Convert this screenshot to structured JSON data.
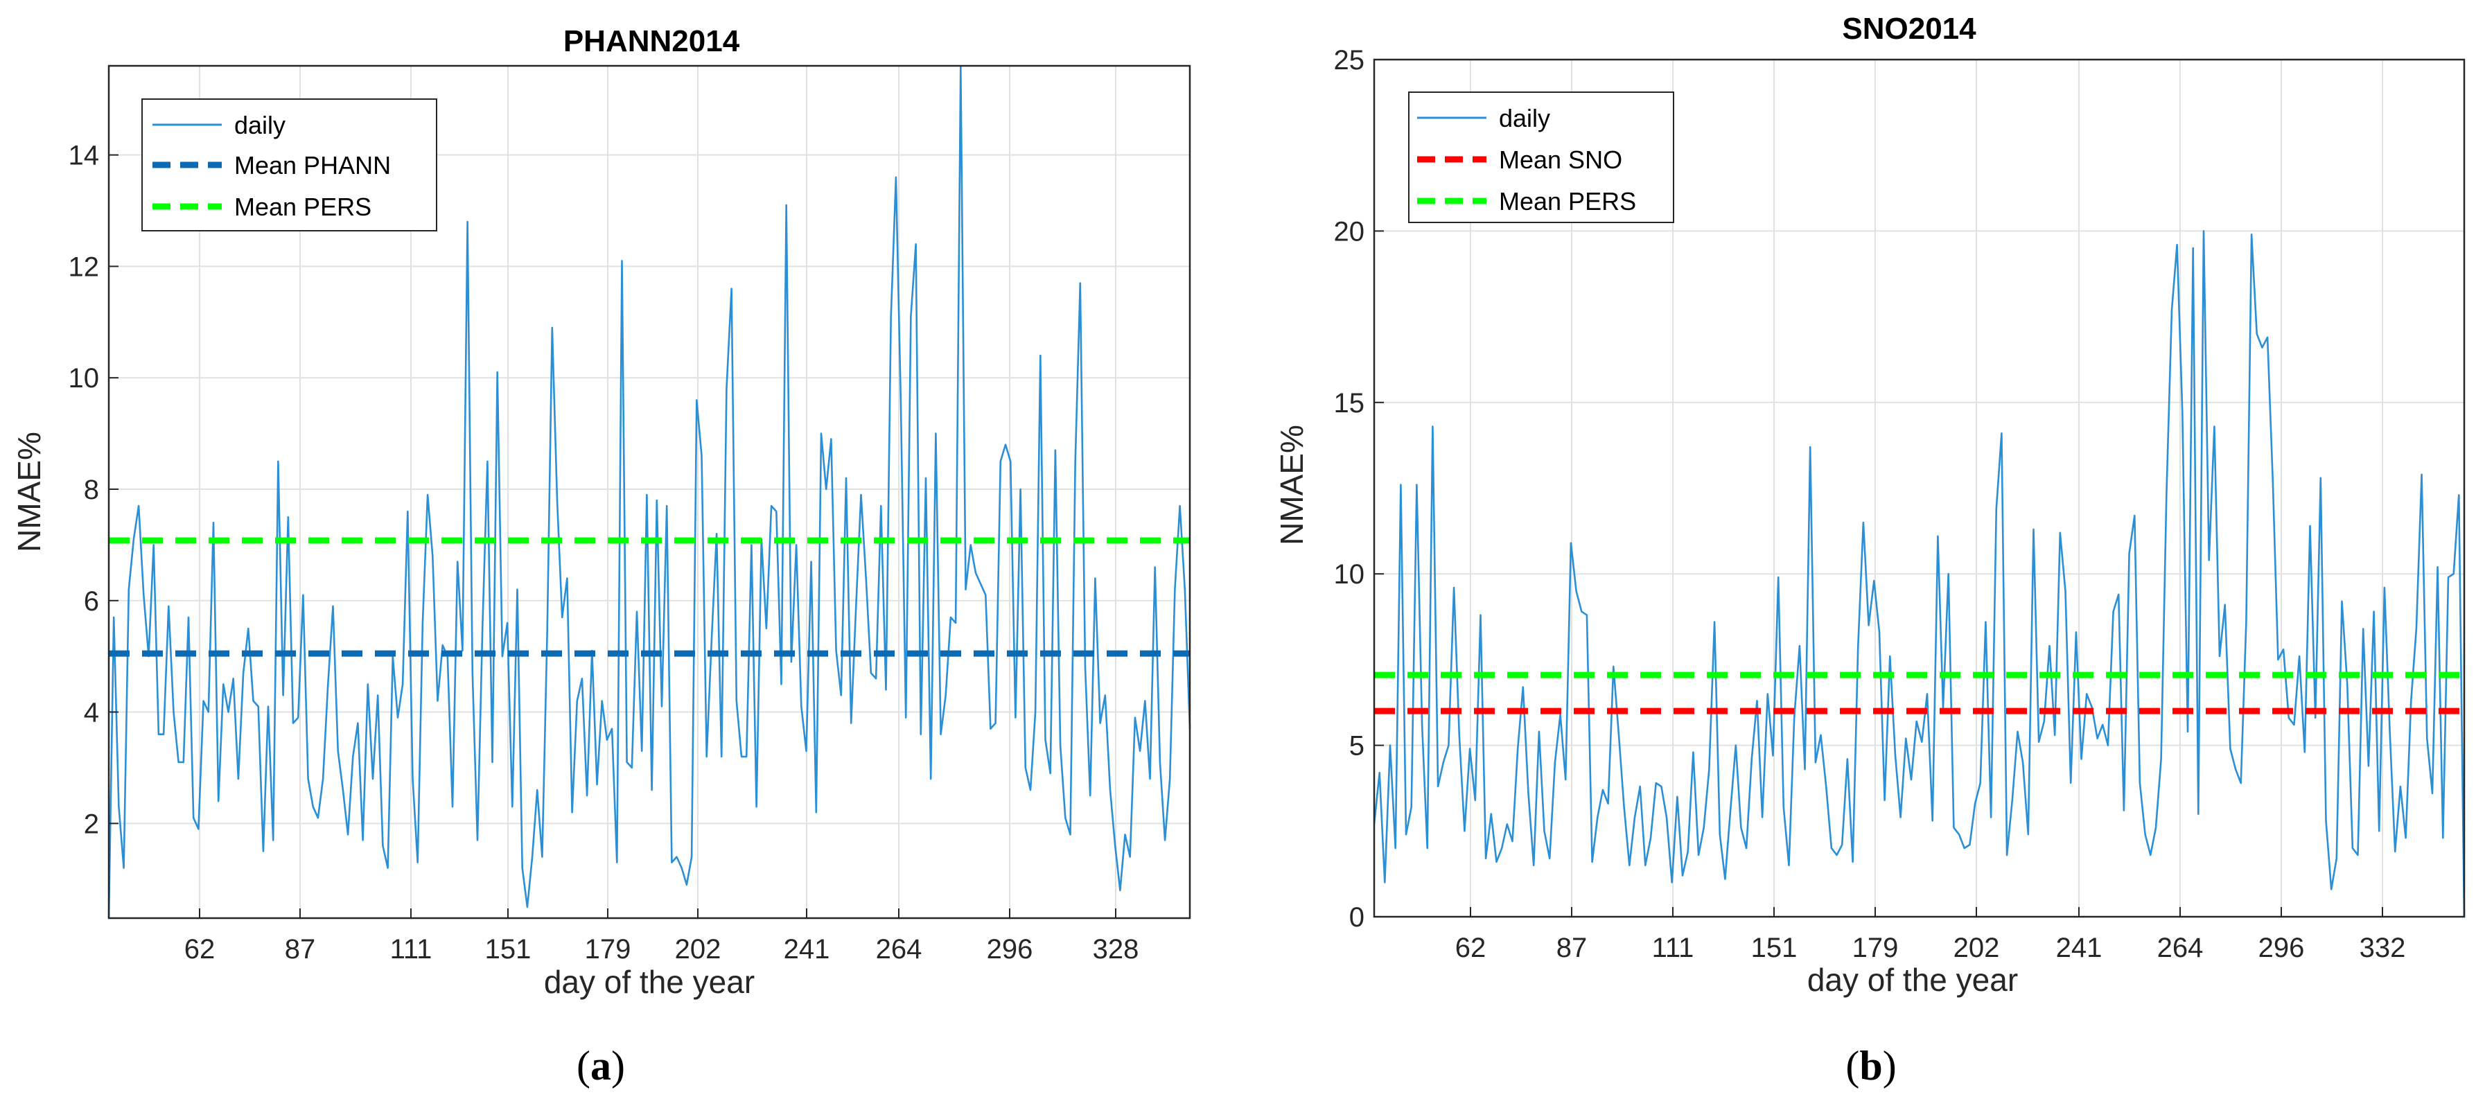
{
  "chart_data": [
    {
      "type": "line",
      "panel_label": "a",
      "title": "PHANN2014",
      "xlabel": "day of the year",
      "ylabel": "NMAE%",
      "ylim": [
        0.3,
        15.6
      ],
      "yticks": [
        2,
        4,
        6,
        8,
        10,
        12,
        14
      ],
      "xtick_labels": [
        "62",
        "87",
        "111",
        "151",
        "179",
        "202",
        "241",
        "264",
        "296",
        "328"
      ],
      "grid": true,
      "legend_position": "top-left",
      "series": [
        {
          "name": "daily",
          "style": "solid",
          "color": "#2b8fd6",
          "values": [
            0.3,
            5.7,
            2.3,
            1.2,
            6.2,
            7.1,
            7.7,
            6.1,
            5.0,
            7.0,
            3.6,
            3.6,
            5.9,
            4.0,
            3.1,
            3.1,
            5.7,
            2.1,
            1.9,
            4.2,
            4.0,
            7.4,
            2.4,
            4.5,
            4.0,
            4.6,
            2.8,
            4.7,
            5.5,
            4.2,
            4.1,
            1.5,
            4.1,
            1.7,
            8.5,
            4.3,
            7.5,
            3.8,
            3.9,
            6.1,
            2.8,
            2.3,
            2.1,
            2.8,
            4.5,
            5.9,
            3.3,
            2.6,
            1.8,
            3.2,
            3.8,
            1.7,
            4.5,
            2.8,
            4.3,
            1.6,
            1.2,
            5.0,
            3.9,
            4.5,
            7.6,
            2.8,
            1.3,
            5.6,
            7.9,
            6.8,
            4.2,
            5.2,
            5.0,
            2.3,
            6.7,
            5.1,
            12.8,
            4.7,
            1.7,
            5.5,
            8.5,
            3.1,
            10.1,
            5.0,
            5.6,
            2.3,
            6.2,
            1.2,
            0.5,
            1.4,
            2.6,
            1.4,
            5.4,
            10.9,
            7.8,
            5.7,
            6.4,
            2.2,
            4.2,
            4.6,
            2.5,
            5.1,
            2.7,
            4.2,
            3.5,
            3.7,
            1.3,
            12.1,
            3.1,
            3.0,
            5.8,
            3.3,
            7.9,
            2.6,
            7.8,
            4.1,
            7.7,
            1.3,
            1.4,
            1.2,
            0.9,
            1.4,
            9.6,
            8.6,
            3.2,
            5.3,
            7.2,
            3.2,
            9.8,
            11.6,
            4.2,
            3.2,
            3.2,
            7.0,
            2.3,
            7.1,
            5.5,
            7.7,
            7.6,
            4.5,
            13.1,
            4.9,
            7.0,
            4.1,
            3.3,
            6.7,
            2.2,
            9.0,
            8.0,
            8.9,
            5.1,
            4.3,
            8.2,
            3.8,
            5.9,
            7.9,
            6.4,
            4.7,
            4.6,
            7.7,
            4.4,
            11.1,
            13.6,
            9.5,
            3.9,
            11.1,
            12.4,
            3.6,
            8.2,
            2.8,
            9.0,
            3.6,
            4.3,
            5.7,
            5.6,
            15.6,
            6.2,
            7.0,
            6.5,
            6.3,
            6.1,
            3.7,
            3.8,
            8.5,
            8.8,
            8.5,
            3.9,
            8.0,
            3.0,
            2.6,
            4.0,
            10.4,
            3.5,
            2.9,
            8.7,
            3.4,
            2.1,
            1.8,
            8.5,
            11.7,
            4.8,
            2.5,
            6.4,
            3.8,
            4.3,
            2.6,
            1.6,
            0.8,
            1.8,
            1.4,
            3.9,
            3.3,
            4.2,
            2.8,
            6.6,
            3.1,
            1.7,
            2.8,
            6.2,
            7.7,
            6.2,
            3.7
          ]
        },
        {
          "name": "Mean PHANN",
          "style": "dashed",
          "color": "#0a6ab4",
          "value": 5.05
        },
        {
          "name": "Mean PERS",
          "style": "dashed",
          "color": "#00ff00",
          "value": 7.08
        }
      ]
    },
    {
      "type": "line",
      "panel_label": "b",
      "title": "SNO2014",
      "xlabel": "day of the year",
      "ylabel": "NMAE%",
      "ylim": [
        0,
        25
      ],
      "yticks": [
        0,
        5,
        10,
        15,
        20,
        25
      ],
      "xtick_labels": [
        "62",
        "87",
        "111",
        "151",
        "179",
        "202",
        "241",
        "264",
        "296",
        "332"
      ],
      "grid": true,
      "legend_position": "top-left",
      "series": [
        {
          "name": "daily",
          "style": "solid",
          "color": "#2b8fd6",
          "values": [
            2.7,
            4.2,
            1.0,
            5.0,
            2.0,
            12.6,
            2.4,
            3.2,
            12.6,
            5.6,
            2.0,
            14.3,
            3.8,
            4.5,
            5.0,
            9.6,
            5.3,
            2.5,
            4.9,
            3.4,
            8.8,
            1.7,
            3.0,
            1.6,
            2.0,
            2.7,
            2.2,
            4.9,
            6.7,
            3.6,
            1.5,
            5.4,
            2.5,
            1.7,
            4.5,
            5.9,
            4.0,
            10.9,
            9.5,
            8.9,
            8.8,
            1.6,
            2.9,
            3.7,
            3.3,
            7.3,
            5.3,
            3.2,
            1.5,
            2.9,
            3.8,
            1.5,
            2.3,
            3.9,
            3.8,
            2.9,
            1.0,
            3.5,
            1.2,
            1.9,
            4.8,
            1.8,
            2.6,
            4.3,
            8.6,
            2.4,
            1.1,
            3.1,
            5.0,
            2.6,
            2.0,
            4.6,
            6.3,
            2.9,
            6.5,
            4.7,
            9.9,
            3.2,
            1.5,
            5.8,
            7.9,
            4.3,
            13.7,
            4.5,
            5.3,
            3.8,
            2.0,
            1.8,
            2.1,
            4.6,
            1.6,
            7.9,
            11.5,
            8.5,
            9.8,
            8.3,
            3.4,
            7.6,
            4.7,
            2.9,
            5.2,
            4.0,
            5.7,
            5.1,
            6.5,
            2.8,
            11.1,
            6.1,
            10.0,
            2.6,
            2.4,
            2.0,
            2.1,
            3.3,
            3.9,
            8.6,
            2.9,
            11.9,
            14.1,
            1.8,
            3.4,
            5.4,
            4.5,
            2.4,
            11.3,
            5.1,
            5.7,
            7.9,
            5.3,
            11.2,
            9.5,
            3.9,
            8.3,
            4.6,
            6.5,
            6.1,
            5.2,
            5.6,
            5.0,
            8.9,
            9.4,
            3.1,
            10.6,
            11.7,
            3.9,
            2.4,
            1.8,
            2.6,
            4.6,
            12.3,
            17.7,
            19.6,
            14.7,
            5.4,
            19.5,
            3.0,
            20.0,
            10.4,
            14.3,
            7.6,
            9.1,
            4.9,
            4.3,
            3.9,
            8.6,
            19.9,
            17.0,
            16.6,
            16.9,
            12.7,
            7.5,
            7.8,
            5.8,
            5.6,
            7.6,
            4.8,
            11.4,
            5.8,
            12.8,
            2.8,
            0.8,
            1.7,
            9.2,
            6.8,
            2.0,
            1.8,
            8.4,
            4.4,
            8.9,
            2.5,
            9.6,
            5.4,
            1.9,
            3.8,
            2.3,
            6.3,
            8.4,
            12.9,
            5.2,
            3.6,
            10.2,
            2.3,
            9.9,
            10.0,
            12.3,
            0.0
          ]
        },
        {
          "name": "Mean SNO",
          "style": "dashed",
          "color": "#ff0000",
          "value": 6.0
        },
        {
          "name": "Mean PERS",
          "style": "dashed",
          "color": "#00ff00",
          "value": 7.05
        }
      ]
    }
  ]
}
